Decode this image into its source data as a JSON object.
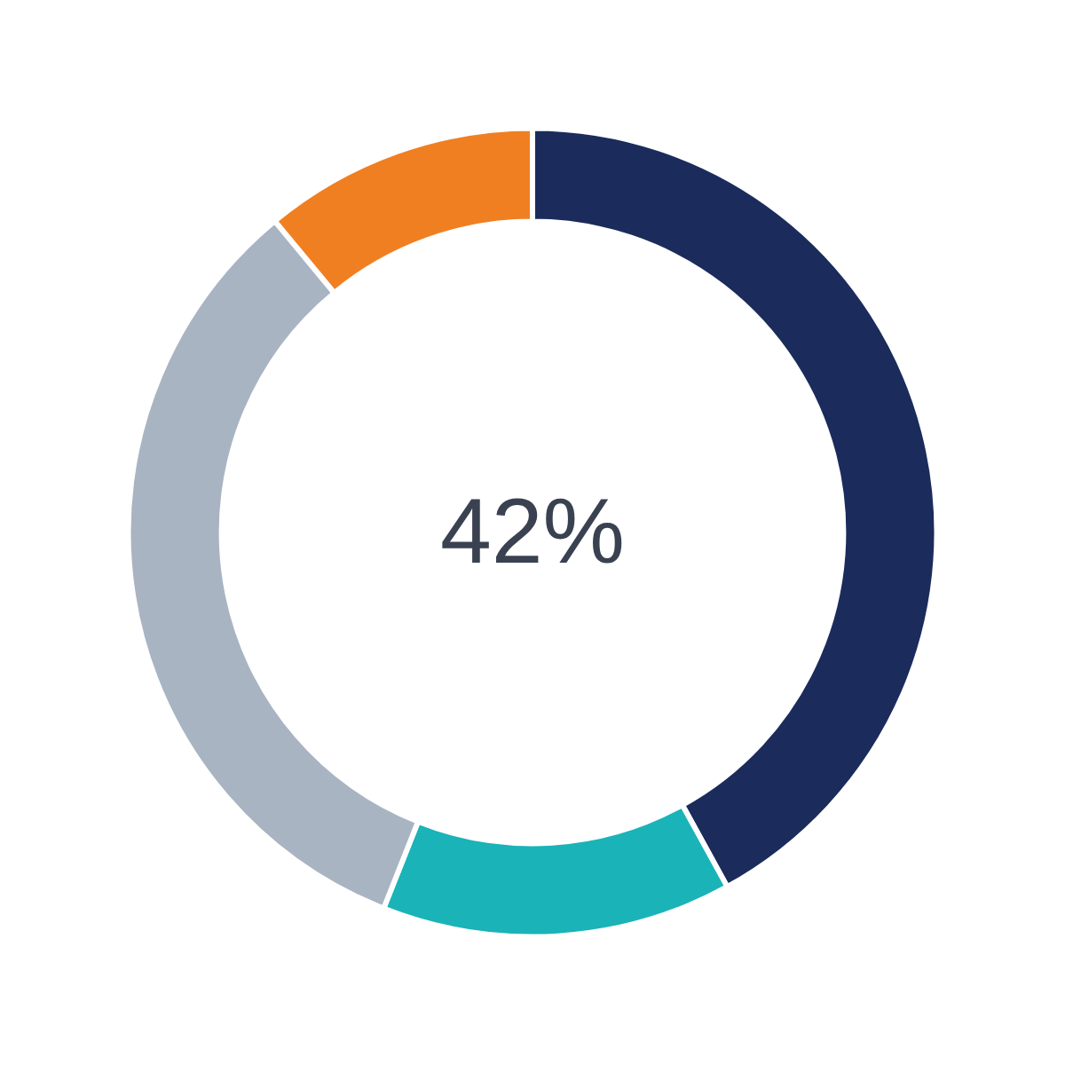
{
  "chart_data": {
    "type": "donut",
    "categories": [
      null,
      null,
      null,
      null
    ],
    "values": [
      42,
      14,
      33,
      11
    ],
    "colors": [
      "#1b2b5b",
      "#1ab3b8",
      "#a9b4c2",
      "#f07f22"
    ],
    "annotations": [
      "42%"
    ]
  }
}
